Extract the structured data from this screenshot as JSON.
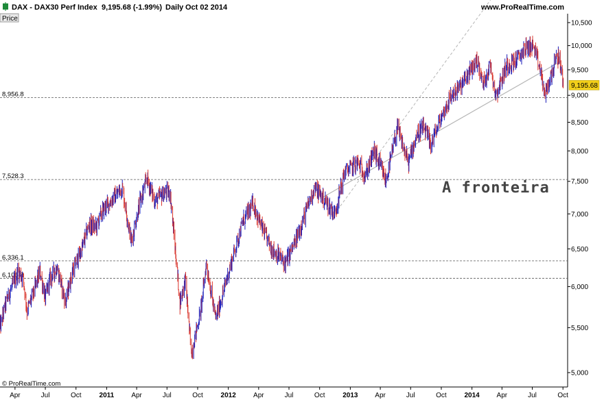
{
  "header": {
    "instrument": "DAX - DAX30 Perf Index",
    "last": "9,195.68 (-1.99%)",
    "period": "Daily",
    "date": "Oct 02 2014",
    "site": "www.ProRealTime.com"
  },
  "panel_label": "Price",
  "footer": "© ProRealTime.com",
  "chart_data": {
    "type": "line",
    "scale": "log",
    "ylim": [
      4850,
      10700
    ],
    "xlim": [
      "2010-02-15",
      "2014-10-15"
    ],
    "y_ticks": [
      "10,500",
      "10,000",
      "9,500",
      "9,000",
      "8,500",
      "8,000",
      "7,500",
      "7,000",
      "6,500",
      "6,000",
      "5,500",
      "5,000"
    ],
    "y_tick_values": [
      10500,
      10000,
      9500,
      9000,
      8500,
      8000,
      7500,
      7000,
      6500,
      6000,
      5500,
      5000
    ],
    "x_ticks": [
      {
        "label": "Apr",
        "date": "2010-04-01",
        "bold": false
      },
      {
        "label": "Jul",
        "date": "2010-07-01",
        "bold": false
      },
      {
        "label": "Oct",
        "date": "2010-10-01",
        "bold": false
      },
      {
        "label": "2011",
        "date": "2011-01-01",
        "bold": true
      },
      {
        "label": "Apr",
        "date": "2011-04-01",
        "bold": false
      },
      {
        "label": "Jul",
        "date": "2011-07-01",
        "bold": false
      },
      {
        "label": "Oct",
        "date": "2011-10-01",
        "bold": false
      },
      {
        "label": "2012",
        "date": "2012-01-01",
        "bold": true
      },
      {
        "label": "Apr",
        "date": "2012-04-01",
        "bold": false
      },
      {
        "label": "Jul",
        "date": "2012-07-01",
        "bold": false
      },
      {
        "label": "Oct",
        "date": "2012-10-01",
        "bold": false
      },
      {
        "label": "2013",
        "date": "2013-01-01",
        "bold": true
      },
      {
        "label": "Apr",
        "date": "2013-04-01",
        "bold": false
      },
      {
        "label": "Jul",
        "date": "2013-07-01",
        "bold": false
      },
      {
        "label": "Oct",
        "date": "2013-10-01",
        "bold": false
      },
      {
        "label": "2014",
        "date": "2014-01-01",
        "bold": true
      },
      {
        "label": "Apr",
        "date": "2014-04-01",
        "bold": false
      },
      {
        "label": "Jul",
        "date": "2014-07-01",
        "bold": false
      },
      {
        "label": "Oct",
        "date": "2014-10-01",
        "bold": false
      }
    ],
    "levels": [
      {
        "label": "8,956.8",
        "value": 8956.8
      },
      {
        "label": "7,528.3",
        "value": 7528.3
      },
      {
        "label": "6,336.1",
        "value": 6336.1
      },
      {
        "label": "6,106.8",
        "value": 6106.8
      }
    ],
    "last_price": {
      "label": "9,195.68",
      "value": 9195.68
    },
    "series": [
      {
        "x": [
          "2010-02-15",
          "2010-03-05",
          "2010-04-10",
          "2010-04-26",
          "2010-05-07",
          "2010-05-25",
          "2010-06-15",
          "2010-07-01",
          "2010-07-15",
          "2010-08-05",
          "2010-08-31",
          "2010-09-20",
          "2010-10-15",
          "2010-11-10",
          "2010-11-30",
          "2010-12-20",
          "2011-01-15",
          "2011-02-17",
          "2011-03-16",
          "2011-04-10",
          "2011-05-02",
          "2011-05-25",
          "2011-06-20",
          "2011-07-10",
          "2011-08-09",
          "2011-08-25",
          "2011-09-12",
          "2011-10-10",
          "2011-10-27",
          "2011-11-24",
          "2011-12-15",
          "2012-01-15",
          "2012-02-15",
          "2012-03-16",
          "2012-04-10",
          "2012-05-10",
          "2012-06-01",
          "2012-06-20",
          "2012-07-20",
          "2012-08-15",
          "2012-09-15",
          "2012-10-10",
          "2012-11-15",
          "2012-12-15",
          "2013-01-24",
          "2013-02-15",
          "2013-03-14",
          "2013-04-18",
          "2013-05-22",
          "2013-06-24",
          "2013-07-20",
          "2013-08-10",
          "2013-08-30",
          "2013-10-01",
          "2013-11-01",
          "2013-12-01",
          "2014-01-17",
          "2014-02-03",
          "2014-02-25",
          "2014-03-14",
          "2014-04-15",
          "2014-05-15",
          "2014-06-10",
          "2014-07-03",
          "2014-07-25",
          "2014-08-08",
          "2014-09-05",
          "2014-09-19",
          "2014-10-02"
        ],
        "y": [
          5500,
          5800,
          6200,
          6100,
          5700,
          5900,
          6200,
          5850,
          6100,
          6250,
          5800,
          6200,
          6450,
          6850,
          6800,
          7050,
          7200,
          7400,
          6600,
          7150,
          7550,
          7200,
          7300,
          7350,
          5800,
          6100,
          5200,
          5700,
          6300,
          5600,
          5900,
          6400,
          6900,
          7150,
          6800,
          6500,
          6400,
          6300,
          6600,
          6950,
          7400,
          7250,
          7000,
          7650,
          7800,
          7600,
          8000,
          7500,
          8400,
          7800,
          8300,
          8400,
          8100,
          8600,
          9000,
          9200,
          9700,
          9200,
          9600,
          9000,
          9600,
          9700,
          9950,
          10000,
          9500,
          9000,
          9600,
          9800,
          9195.68
        ]
      }
    ],
    "annotations": [
      {
        "text": "A fronteira"
      }
    ]
  }
}
